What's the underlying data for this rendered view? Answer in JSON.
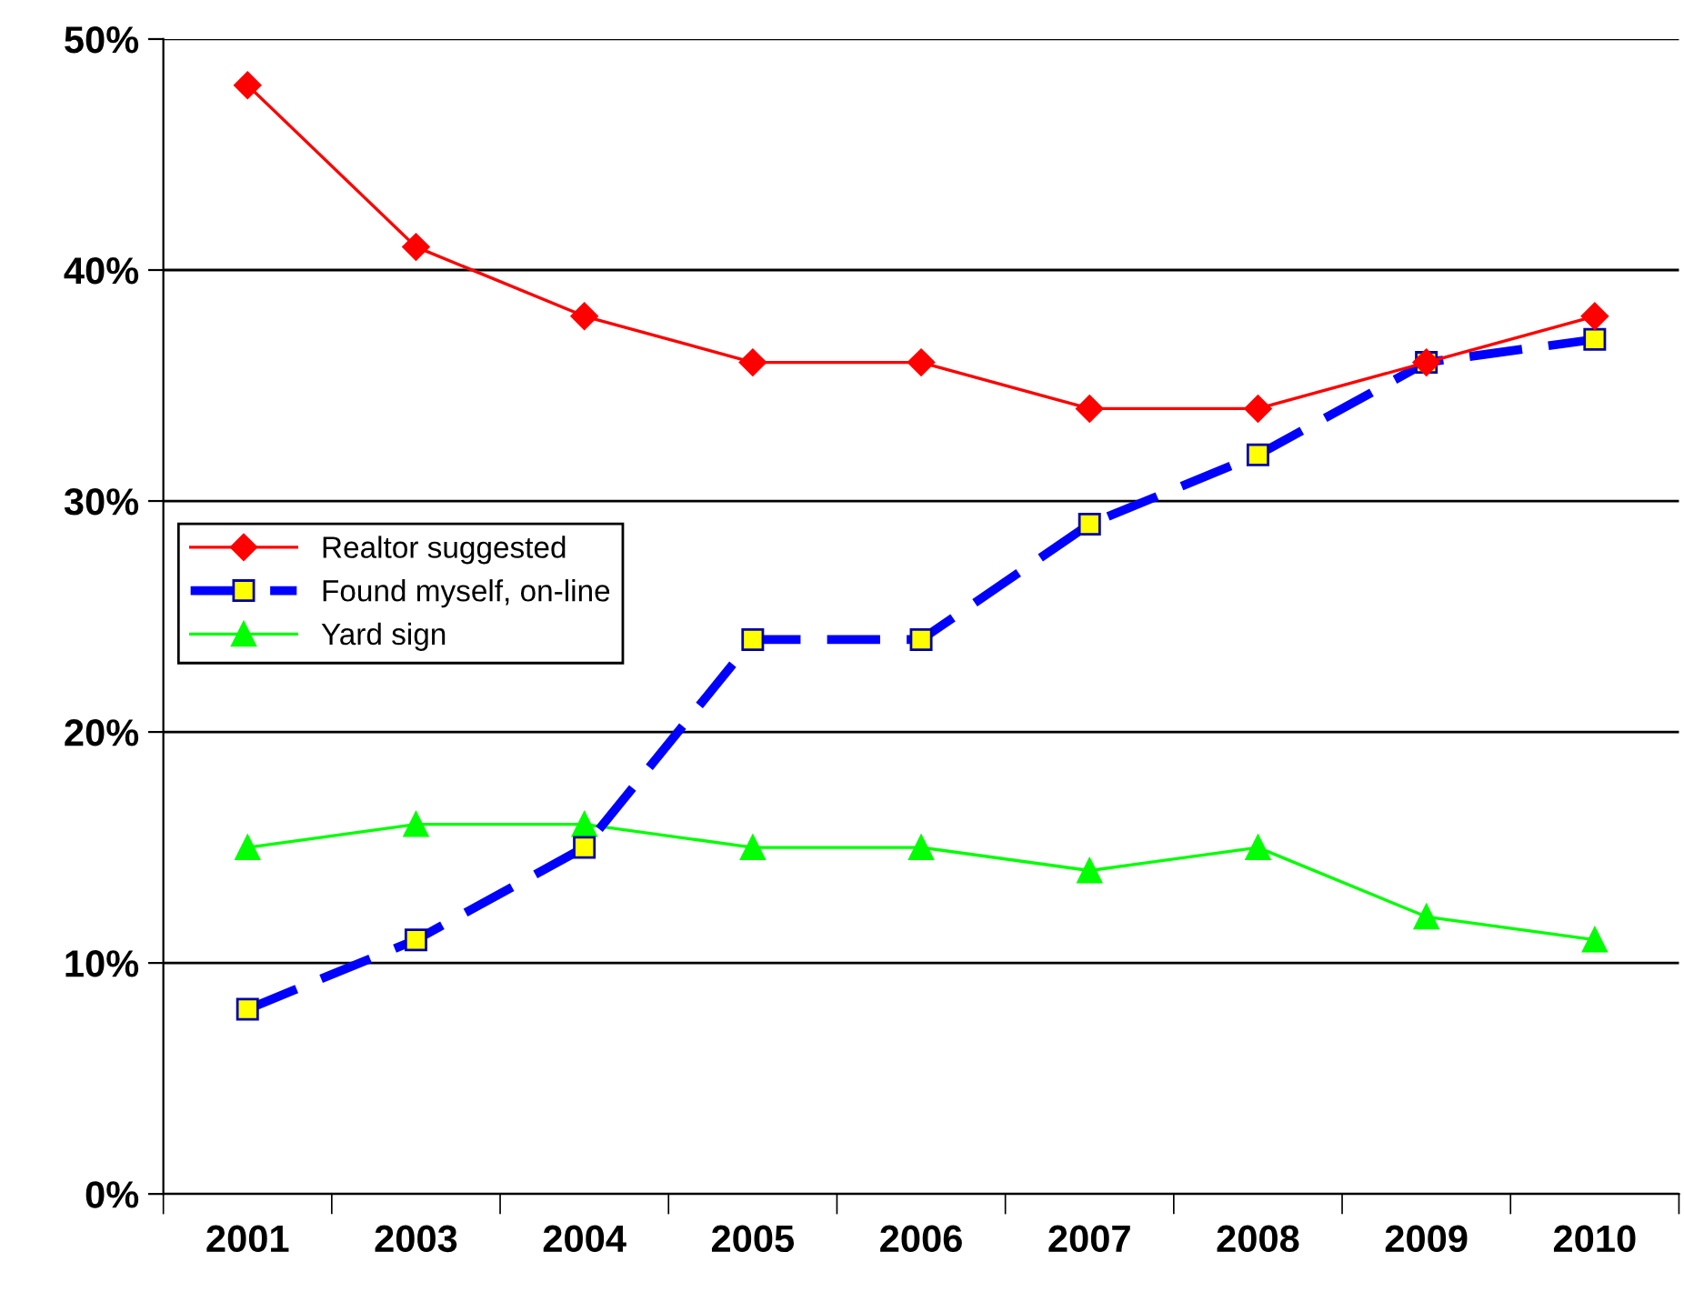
{
  "chart_data": {
    "type": "line",
    "categories": [
      "2001",
      "2003",
      "2004",
      "2005",
      "2006",
      "2007",
      "2008",
      "2009",
      "2010"
    ],
    "series": [
      {
        "name": "Realtor suggested",
        "color": "#ff0000",
        "marker": "diamond",
        "line_style": "solid",
        "values": [
          48,
          41,
          38,
          36,
          36,
          34,
          34,
          36,
          38
        ]
      },
      {
        "name": "Found myself, on-line",
        "color": "#0000ff",
        "marker": "square",
        "line_style": "dashed",
        "values": [
          8,
          11,
          15,
          24,
          24,
          29,
          32,
          36,
          37
        ]
      },
      {
        "name": "Yard sign",
        "color": "#00ff00",
        "marker": "triangle",
        "line_style": "solid",
        "values": [
          15,
          16,
          16,
          15,
          15,
          14,
          15,
          12,
          11
        ]
      }
    ],
    "ylim": [
      0,
      50
    ],
    "yticks": [
      {
        "value": 0,
        "label": "0%"
      },
      {
        "value": 10,
        "label": "10%"
      },
      {
        "value": 20,
        "label": "20%"
      },
      {
        "value": 30,
        "label": "30%"
      },
      {
        "value": 40,
        "label": "40%"
      },
      {
        "value": 50,
        "label": "50%"
      }
    ],
    "grid": "y",
    "legend": "left"
  }
}
